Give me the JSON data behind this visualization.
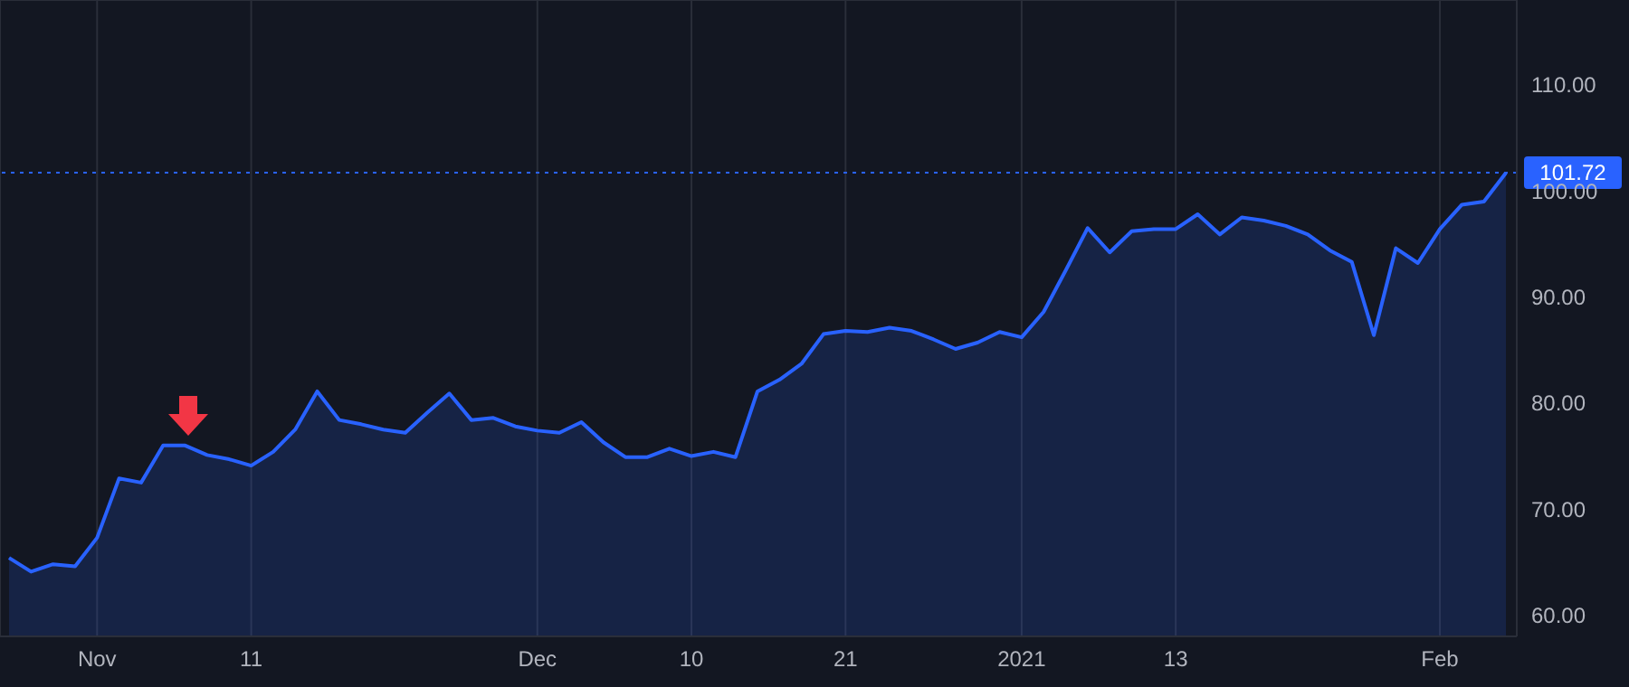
{
  "chart_data": {
    "type": "area",
    "categories": [
      null,
      null,
      null,
      null,
      "Nov",
      null,
      null,
      null,
      null,
      null,
      null,
      "11",
      null,
      null,
      null,
      null,
      null,
      null,
      null,
      null,
      null,
      null,
      null,
      null,
      "Dec",
      null,
      null,
      null,
      null,
      null,
      null,
      "10",
      null,
      null,
      null,
      null,
      null,
      null,
      "21",
      null,
      null,
      null,
      null,
      null,
      null,
      null,
      "2021",
      null,
      null,
      null,
      null,
      null,
      null,
      "13",
      null,
      null,
      null,
      null,
      null,
      null,
      null,
      null,
      null,
      null,
      null,
      "Feb",
      null,
      null,
      null
    ],
    "series": [
      {
        "color": "#2962ff",
        "values": [
          65.4,
          64.1,
          64.8,
          64.6,
          67.3,
          72.9,
          72.5,
          76.0,
          76.0,
          75.1,
          74.7,
          74.1,
          75.4,
          77.5,
          81.1,
          78.4,
          78.0,
          77.5,
          77.2,
          79.1,
          80.9,
          78.4,
          78.6,
          77.8,
          77.4,
          77.2,
          78.2,
          76.3,
          74.9,
          74.9,
          75.7,
          75.0,
          75.4,
          74.9,
          81.1,
          82.2,
          83.7,
          86.5,
          86.8,
          86.7,
          87.1,
          86.8,
          86.0,
          85.1,
          85.7,
          86.7,
          86.2,
          88.6,
          92.5,
          96.5,
          94.2,
          96.2,
          96.4,
          96.4,
          97.8,
          95.9,
          97.5,
          97.2,
          96.7,
          95.9,
          94.4,
          93.3,
          86.4,
          94.6,
          93.2,
          96.4,
          98.7,
          99.0,
          101.7
        ]
      }
    ],
    "ylim": [
      58,
      118
    ],
    "yticks": [
      {
        "value": 60,
        "label": "60.00"
      },
      {
        "value": 70,
        "label": "70.00"
      },
      {
        "value": 80,
        "label": "80.00"
      },
      {
        "value": 90,
        "label": "90.00"
      },
      {
        "value": 100,
        "label": "100.00"
      },
      {
        "value": 110,
        "label": "110.00"
      }
    ],
    "ref_lines": [
      {
        "axis": "y",
        "value": 101.72,
        "label": "101.72",
        "color": "#2962ff",
        "line_style": "dotted"
      }
    ],
    "grid": true,
    "line_style": "solid",
    "marker": "none"
  }
}
